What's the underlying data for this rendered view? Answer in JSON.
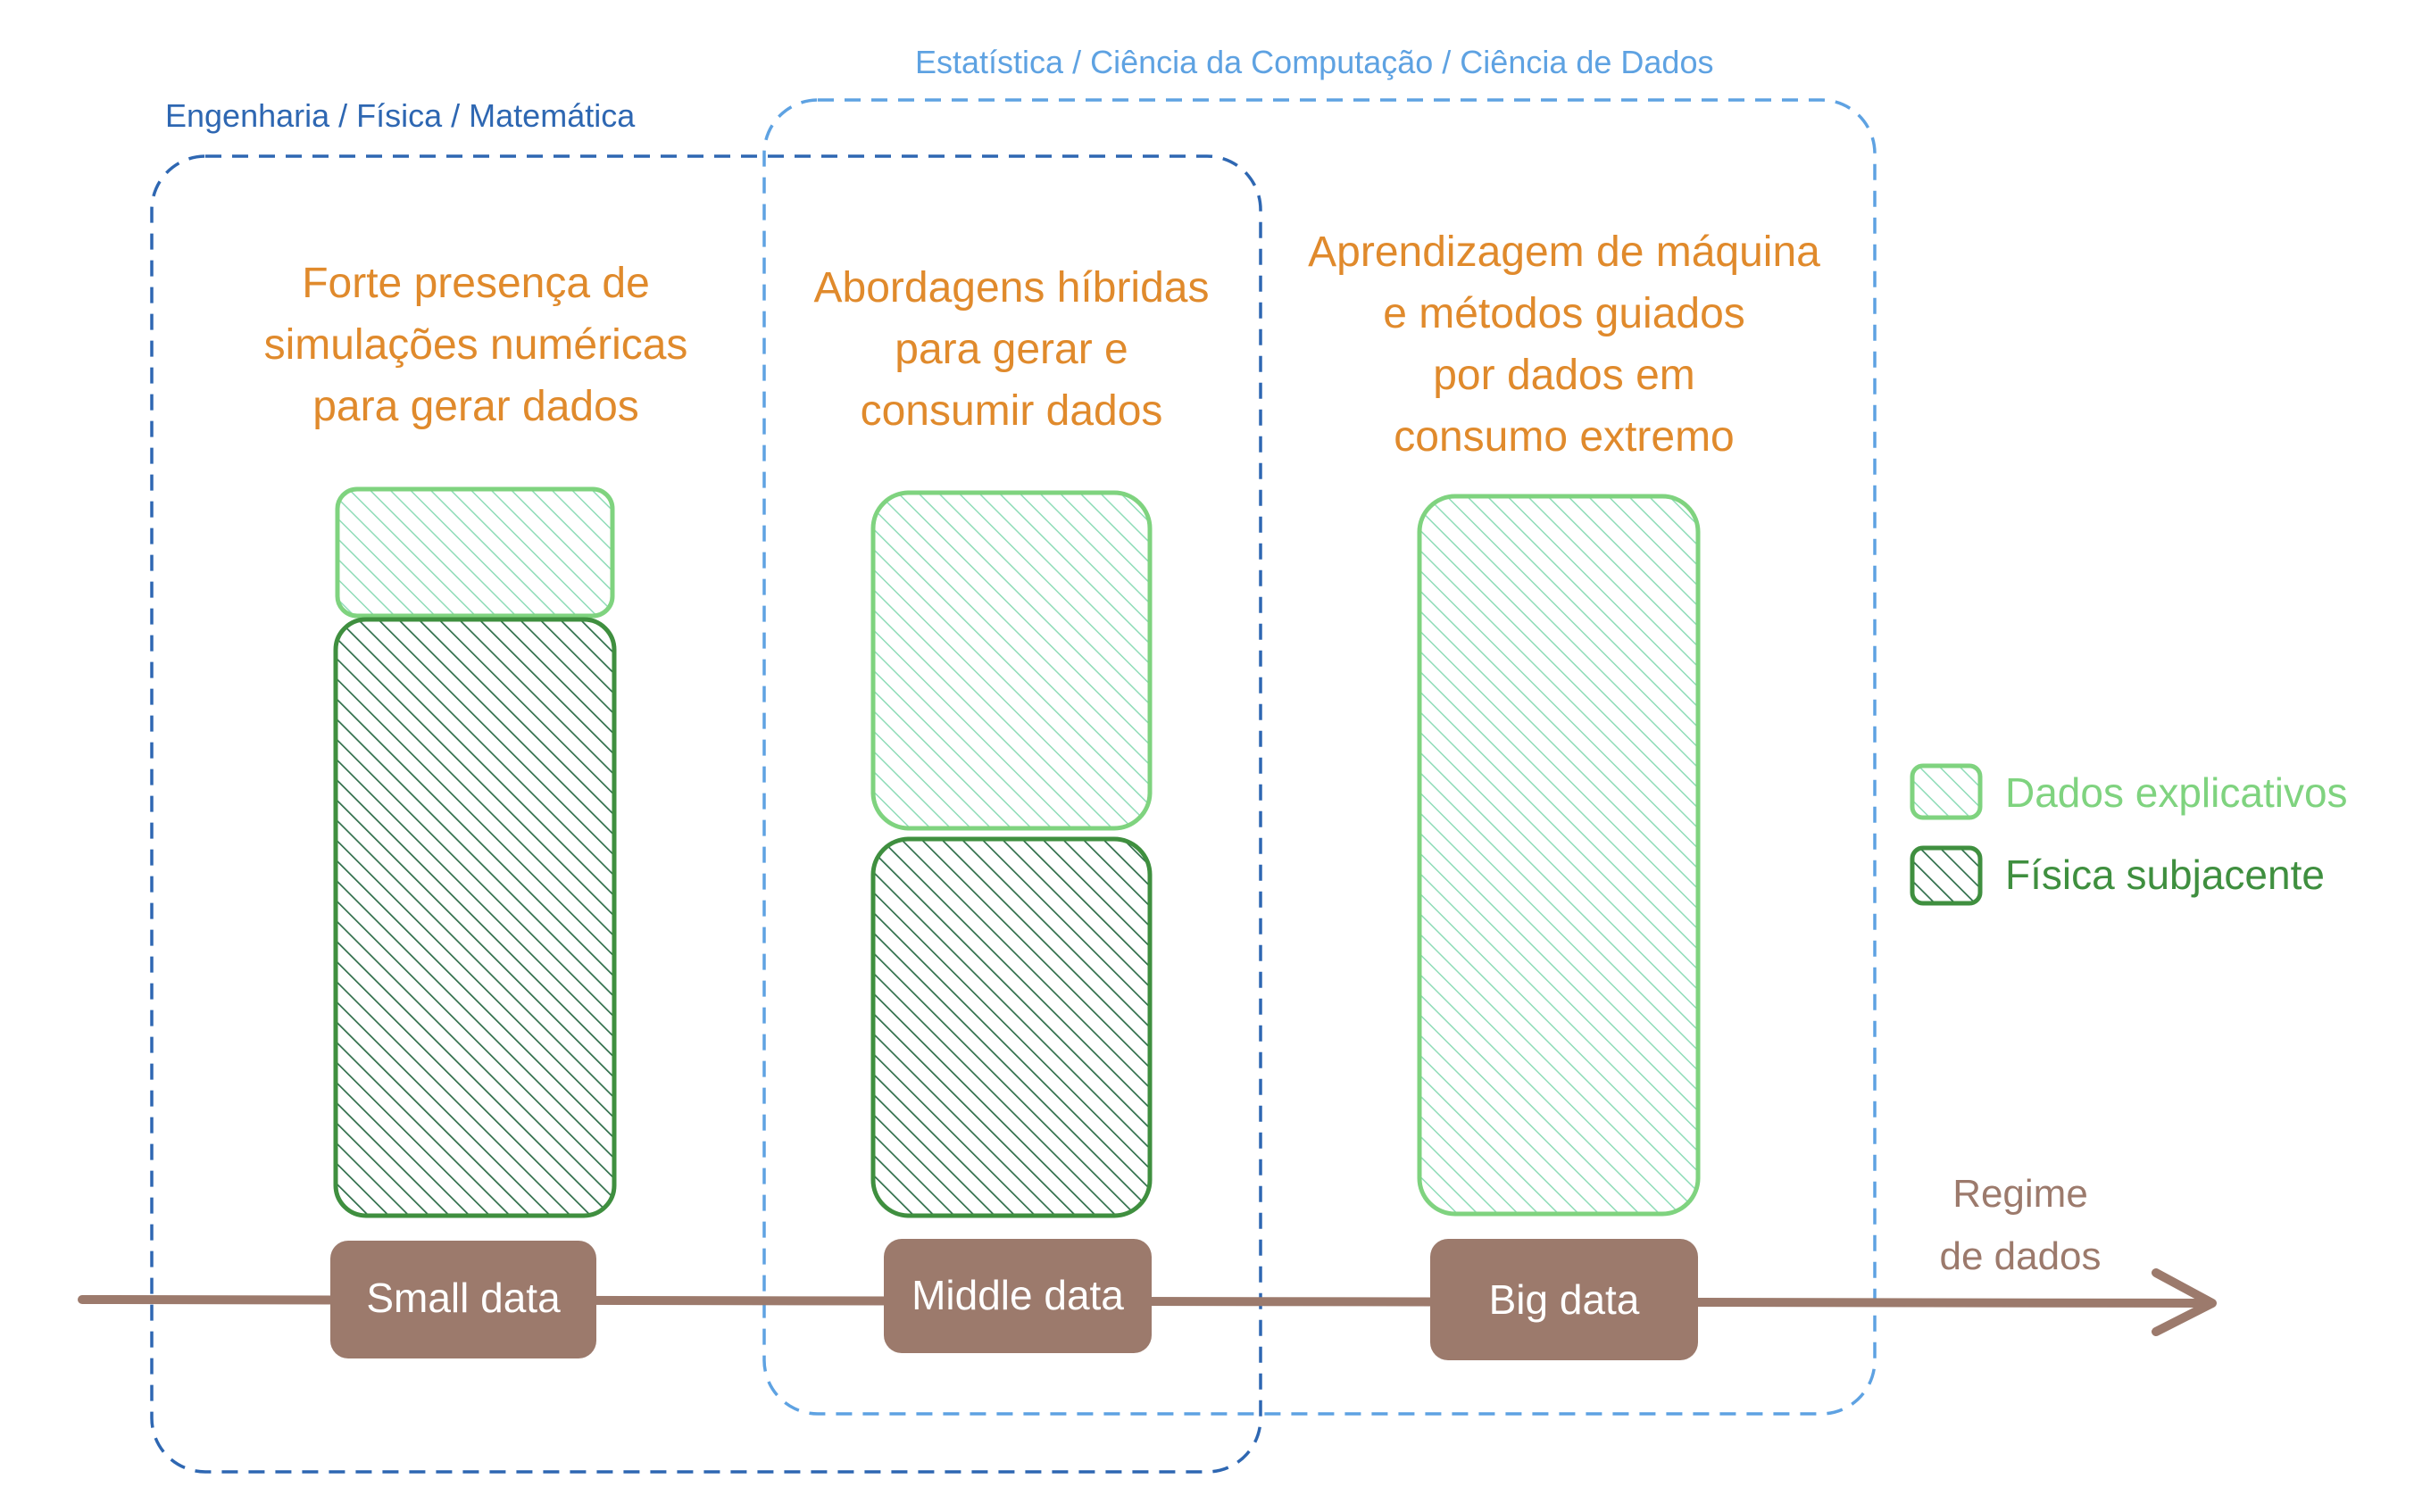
{
  "groups": {
    "engineering": {
      "label": "Engenharia / Física / Matemática",
      "color": "#2e67b2"
    },
    "statistics": {
      "label": "Estatística / Ciência da Computação / Ciência de Dados",
      "color": "#5ea2e2"
    }
  },
  "regimes": [
    {
      "name": "Small data",
      "description": [
        "Forte presença de",
        "simulações numéricas",
        "para gerar dados"
      ],
      "explanatory_share": 0.2,
      "physics_share": 0.8
    },
    {
      "name": "Middle data",
      "description": [
        "Abordagens híbridas",
        "para gerar e",
        "consumir dados"
      ],
      "explanatory_share": 0.5,
      "physics_share": 0.5
    },
    {
      "name": "Big data",
      "description": [
        "Aprendizagem de máquina",
        "e métodos guiados",
        "por dados em",
        "consumo extremo"
      ],
      "explanatory_share": 1.0,
      "physics_share": 0.0
    }
  ],
  "legend": [
    {
      "label": "Dados explicativos",
      "color": "#7fd37f",
      "kind": "explanatory"
    },
    {
      "label": "Física subjacente",
      "color": "#3f8f3f",
      "kind": "physics"
    }
  ],
  "axis": {
    "label_line1": "Regime",
    "label_line2": "de dados",
    "color": "#9c7a6c"
  },
  "colors": {
    "description_text": "#e08a2c",
    "explanatory_stroke": "#7fd37f",
    "explanatory_hatch": "#8fdcb8",
    "physics_stroke": "#3f8f3f",
    "physics_hatch": "#2f6e4a",
    "pill_fill": "#9c7a6c"
  }
}
